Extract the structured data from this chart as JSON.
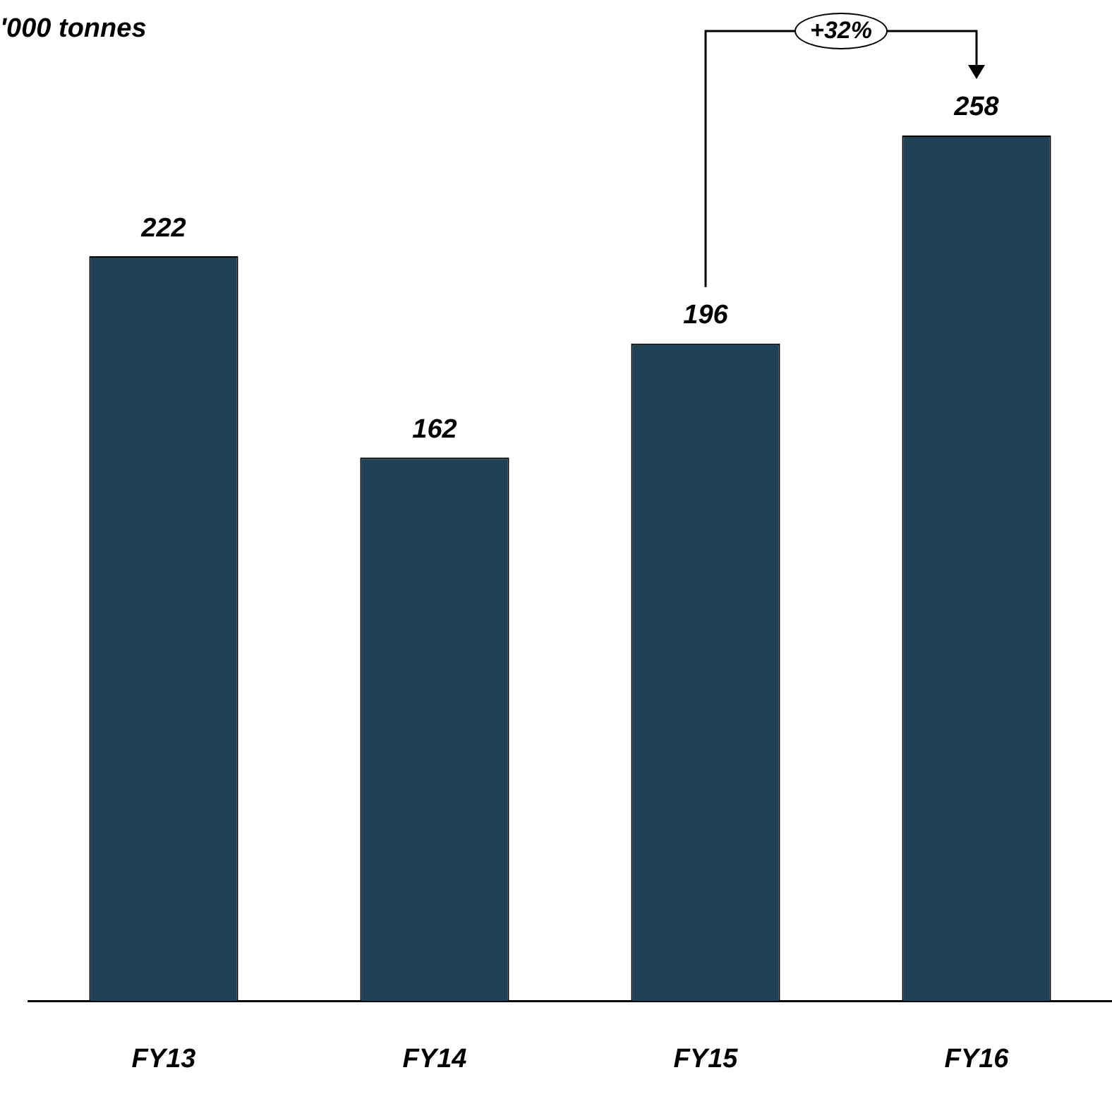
{
  "chart_data": {
    "type": "bar",
    "ylabel": "'000 tonnes",
    "categories": [
      "FY13",
      "FY14",
      "FY15",
      "FY16"
    ],
    "values": [
      222,
      162,
      196,
      258
    ],
    "color": "#1f4257",
    "data_labels": true,
    "grid": false,
    "legend": false,
    "annotations": [
      "+32%"
    ]
  }
}
